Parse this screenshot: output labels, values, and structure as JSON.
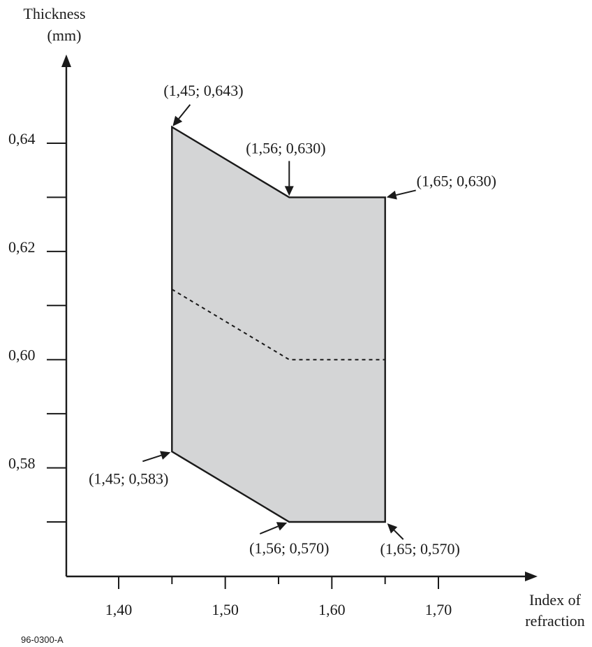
{
  "figure_code": "96-0300-A",
  "chart_data": {
    "type": "area",
    "title": "",
    "xlabel": "Index of refraction",
    "ylabel": "Thickness (mm)",
    "ylabel_lines": [
      "Thickness",
      "(mm)"
    ],
    "xlabel_lines": [
      "Index of",
      "refraction"
    ],
    "xlim": [
      1.35,
      1.75
    ],
    "ylim": [
      0.56,
      0.6555
    ],
    "x_ticks": [
      {
        "value": 1.4,
        "label": "1,40",
        "major": true
      },
      {
        "value": 1.45,
        "label": "",
        "major": false
      },
      {
        "value": 1.5,
        "label": "1,50",
        "major": true
      },
      {
        "value": 1.55,
        "label": "",
        "major": false
      },
      {
        "value": 1.6,
        "label": "1,60",
        "major": true
      },
      {
        "value": 1.65,
        "label": "",
        "major": false
      },
      {
        "value": 1.7,
        "label": "1,70",
        "major": true
      }
    ],
    "y_ticks": [
      {
        "value": 0.57,
        "label": ""
      },
      {
        "value": 0.58,
        "label": "0,58"
      },
      {
        "value": 0.59,
        "label": ""
      },
      {
        "value": 0.6,
        "label": "0,60"
      },
      {
        "value": 0.61,
        "label": ""
      },
      {
        "value": 0.62,
        "label": "0,62"
      },
      {
        "value": 0.63,
        "label": ""
      },
      {
        "value": 0.64,
        "label": "0,64"
      }
    ],
    "region": {
      "fill": "#d4d5d6",
      "stroke": "#1a1a1a",
      "upper_boundary": [
        {
          "x": 1.45,
          "y": 0.643
        },
        {
          "x": 1.56,
          "y": 0.63
        },
        {
          "x": 1.65,
          "y": 0.63
        }
      ],
      "lower_boundary": [
        {
          "x": 1.45,
          "y": 0.583
        },
        {
          "x": 1.56,
          "y": 0.57
        },
        {
          "x": 1.65,
          "y": 0.57
        }
      ]
    },
    "center_line": {
      "style": "dashed",
      "points": [
        {
          "x": 1.45,
          "y": 0.613
        },
        {
          "x": 1.56,
          "y": 0.6
        },
        {
          "x": 1.65,
          "y": 0.6
        }
      ]
    },
    "annotations": [
      {
        "text": "(1,45; 0,643)",
        "x": 1.45,
        "y": 0.643,
        "placement": "above"
      },
      {
        "text": "(1,56; 0,630)",
        "x": 1.56,
        "y": 0.63,
        "placement": "above"
      },
      {
        "text": "(1,65; 0,630)",
        "x": 1.65,
        "y": 0.63,
        "placement": "right"
      },
      {
        "text": "(1,45; 0,583)",
        "x": 1.45,
        "y": 0.583,
        "placement": "left"
      },
      {
        "text": "(1,56; 0,570)",
        "x": 1.56,
        "y": 0.57,
        "placement": "below"
      },
      {
        "text": "(1,65; 0,570)",
        "x": 1.65,
        "y": 0.57,
        "placement": "below-right"
      }
    ]
  }
}
